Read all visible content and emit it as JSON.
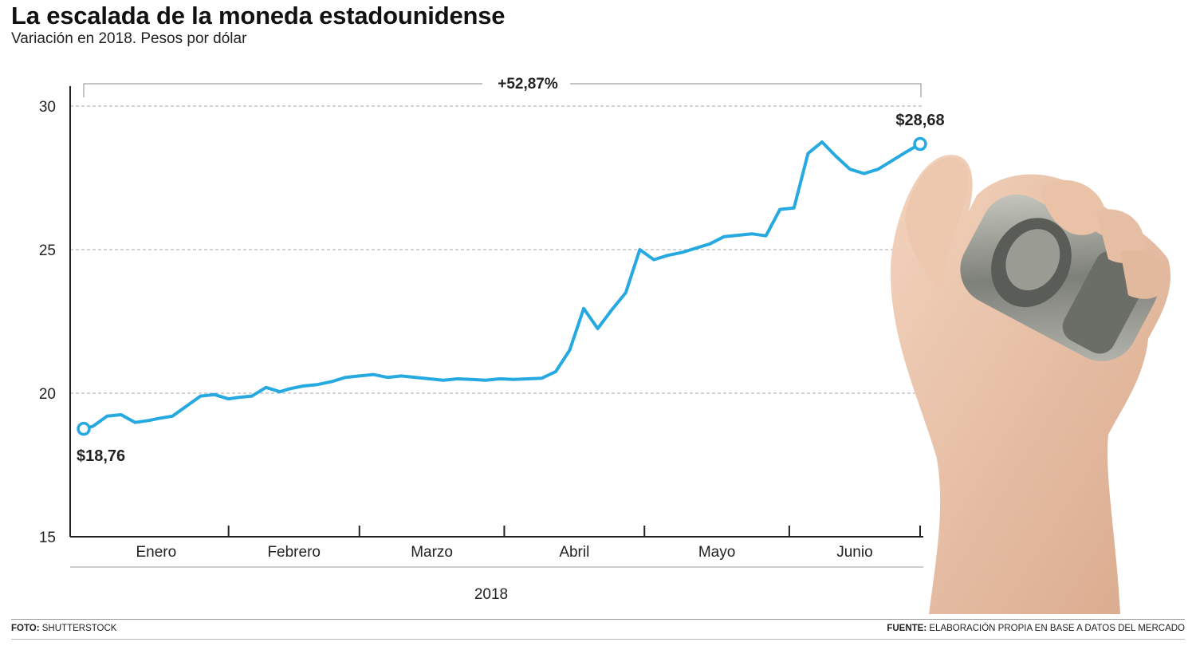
{
  "header": {
    "title": "La escalada de la moneda estadounidense",
    "subtitle": "Variación en 2018. Pesos por dólar"
  },
  "footer": {
    "foto_label": "FOTO:",
    "foto_value": "SHUTTERSTOCK",
    "fuente_label": "FUENTE:",
    "fuente_value": "ELABORACIÓN PROPIA EN BASE A DATOS DEL MERCADO"
  },
  "colors": {
    "line": "#25a9e0",
    "axis": "#222222",
    "grid": "#aaaaaa"
  },
  "photo": {
    "icon": "hand-holding-dollar-roll-icon"
  },
  "chart_data": {
    "type": "line",
    "title": "La escalada de la moneda estadounidense",
    "subtitle": "Variación en 2018. Pesos por dólar",
    "xlabel": "2018",
    "ylabel": "",
    "ylim": [
      15,
      30
    ],
    "yticks": [
      "15",
      "20",
      "25",
      "30"
    ],
    "month_labels": [
      "Enero",
      "Febrero",
      "Marzo",
      "Abril",
      "Mayo",
      "Junio"
    ],
    "grid": "horizontal-dashed",
    "change_annotation": "+52,87%",
    "start_label": "$18,76",
    "end_label": "$28,68",
    "series": [
      {
        "x": [
          "2018-01-01",
          "2018-01-03",
          "2018-01-06",
          "2018-01-09",
          "2018-01-12",
          "2018-01-15",
          "2018-01-17",
          "2018-01-20",
          "2018-01-23",
          "2018-01-26",
          "2018-01-29",
          "2018-02-01",
          "2018-02-03",
          "2018-02-06",
          "2018-02-09",
          "2018-02-12",
          "2018-02-14",
          "2018-02-17",
          "2018-02-20",
          "2018-02-23",
          "2018-02-26",
          "2018-03-01",
          "2018-03-04",
          "2018-03-07",
          "2018-03-10",
          "2018-03-13",
          "2018-03-16",
          "2018-03-19",
          "2018-03-22",
          "2018-03-25",
          "2018-03-28",
          "2018-03-31",
          "2018-04-03",
          "2018-04-06",
          "2018-04-09",
          "2018-04-12",
          "2018-04-15",
          "2018-04-18",
          "2018-04-21",
          "2018-04-24",
          "2018-04-27",
          "2018-04-30",
          "2018-05-03",
          "2018-05-06",
          "2018-05-09",
          "2018-05-12",
          "2018-05-15",
          "2018-05-18",
          "2018-05-21",
          "2018-05-24",
          "2018-05-27",
          "2018-05-30",
          "2018-06-02",
          "2018-06-05",
          "2018-06-08",
          "2018-06-11",
          "2018-06-14",
          "2018-06-17",
          "2018-06-20",
          "2018-06-23",
          "2018-06-26",
          "2018-06-29"
        ],
        "values": [
          18.76,
          18.85,
          19.2,
          19.25,
          18.98,
          19.05,
          19.12,
          19.2,
          19.55,
          19.9,
          19.95,
          19.8,
          19.85,
          19.9,
          20.2,
          20.05,
          20.15,
          20.25,
          20.3,
          20.4,
          20.55,
          20.6,
          20.65,
          20.55,
          20.6,
          20.55,
          20.5,
          20.45,
          20.5,
          20.48,
          20.45,
          20.5,
          20.48,
          20.5,
          20.52,
          20.75,
          21.5,
          22.95,
          22.25,
          22.9,
          23.5,
          25.0,
          24.65,
          24.8,
          24.9,
          25.05,
          25.2,
          25.45,
          25.5,
          25.55,
          25.48,
          26.4,
          26.45,
          28.35,
          28.75,
          28.25,
          27.8,
          27.65,
          27.8,
          28.1,
          28.4,
          28.68
        ]
      }
    ]
  }
}
